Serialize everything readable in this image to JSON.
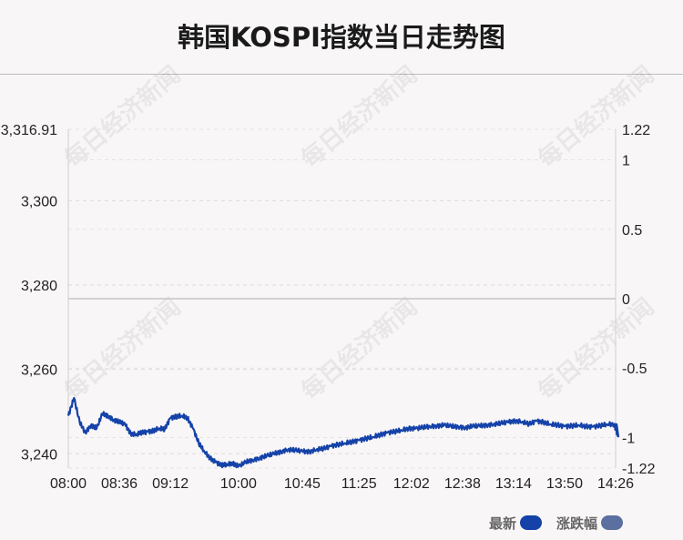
{
  "chart_data": {
    "type": "line",
    "title": "韩国KOSPI指数当日走势图",
    "x_ticks": [
      "08:00",
      "08:36",
      "09:12",
      "10:00",
      "10:45",
      "11:25",
      "12:02",
      "12:38",
      "13:14",
      "13:50",
      "14:26"
    ],
    "y_left_ticks": [
      "3,316.91",
      "3,300",
      "3,280",
      "3,260",
      "3,240"
    ],
    "y_right_ticks": [
      "1.22",
      "1",
      "0.5",
      "0",
      "-0.5",
      "-1",
      "-1.22"
    ],
    "ylim_left": [
      3236.61,
      3316.91
    ],
    "ylim_right": [
      -1.22,
      1.22
    ],
    "grid": true,
    "legend_position": "bottom-right",
    "series": [
      {
        "name": "最新",
        "color": "#1442a8",
        "x": [
          "08:00",
          "08:04",
          "08:08",
          "08:12",
          "08:16",
          "08:20",
          "08:24",
          "08:28",
          "08:32",
          "08:36",
          "08:40",
          "08:44",
          "08:48",
          "08:52",
          "08:56",
          "09:00",
          "09:04",
          "09:08",
          "09:12",
          "09:16",
          "09:20",
          "09:24",
          "09:28",
          "09:32",
          "09:36",
          "09:40",
          "09:44",
          "09:48",
          "09:52",
          "09:56",
          "10:00",
          "10:05",
          "10:10",
          "10:15",
          "10:20",
          "10:25",
          "10:30",
          "10:35",
          "10:40",
          "10:45",
          "10:50",
          "10:55",
          "11:00",
          "11:05",
          "11:10",
          "11:15",
          "11:20",
          "11:25",
          "11:30",
          "11:35",
          "11:40",
          "11:45",
          "11:50",
          "11:55",
          "12:00",
          "12:05",
          "12:10",
          "12:15",
          "12:20",
          "12:25",
          "12:30",
          "12:35",
          "12:40",
          "12:45",
          "12:50",
          "12:55",
          "13:00",
          "13:05",
          "13:10",
          "13:15",
          "13:20",
          "13:25",
          "13:30",
          "13:35",
          "13:40",
          "13:45",
          "13:50",
          "13:55",
          "14:00",
          "14:05",
          "14:10",
          "14:15",
          "14:20",
          "14:25",
          "14:28"
        ],
        "values": [
          3249.0,
          3253.2,
          3247.5,
          3245.0,
          3246.8,
          3246.0,
          3249.5,
          3249.0,
          3248.0,
          3247.5,
          3247.0,
          3244.8,
          3244.6,
          3245.0,
          3245.2,
          3245.5,
          3246.0,
          3245.8,
          3248.5,
          3248.8,
          3249.0,
          3248.5,
          3246.0,
          3242.5,
          3240.5,
          3239.0,
          3238.0,
          3237.2,
          3237.5,
          3237.8,
          3237.0,
          3238.0,
          3238.5,
          3239.0,
          3239.5,
          3240.0,
          3240.5,
          3241.0,
          3240.8,
          3240.6,
          3240.5,
          3241.0,
          3241.2,
          3241.8,
          3242.2,
          3242.5,
          3242.8,
          3243.2,
          3243.6,
          3244.0,
          3244.5,
          3245.0,
          3245.2,
          3245.6,
          3246.0,
          3246.0,
          3246.2,
          3246.5,
          3246.6,
          3246.8,
          3246.5,
          3246.4,
          3246.2,
          3246.5,
          3246.6,
          3246.8,
          3247.0,
          3247.2,
          3247.5,
          3247.8,
          3247.6,
          3247.0,
          3247.8,
          3247.5,
          3247.0,
          3246.8,
          3246.5,
          3246.6,
          3246.8,
          3246.5,
          3246.4,
          3246.6,
          3247.0,
          3247.0,
          3243.9
        ]
      },
      {
        "name": "涨跌幅",
        "color": "#5b6fa0"
      }
    ]
  },
  "watermark": "每日经济新闻"
}
